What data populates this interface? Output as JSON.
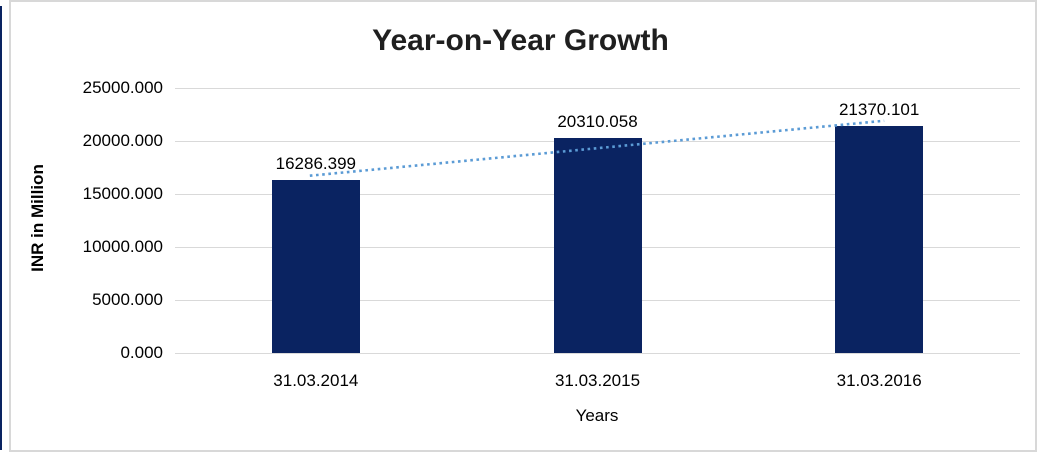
{
  "frame": {
    "border_color": "#d8d8d8",
    "left_edge_color": "#0a2361"
  },
  "chart_data": {
    "type": "bar",
    "title": "Year-on-Year Growth",
    "xlabel": "Years",
    "ylabel": "INR in Million",
    "categories": [
      "31.03.2014",
      "31.03.2015",
      "31.03.2016"
    ],
    "values": [
      16286.399,
      20310.058,
      21370.101
    ],
    "data_labels": [
      "16286.399",
      "20310.058",
      "21370.101"
    ],
    "ylim": [
      0,
      25000
    ],
    "ytick_values": [
      0,
      5000,
      10000,
      15000,
      20000,
      25000
    ],
    "ytick_labels": [
      "0.000",
      "5000.000",
      "10000.000",
      "15000.000",
      "20000.000",
      "25000.000"
    ],
    "grid": true,
    "legend": "none",
    "bar_color": "#0a2361",
    "grid_color": "#d9d9d9",
    "trendline": {
      "type": "linear",
      "style": "dotted",
      "color": "#5b9bd5"
    }
  }
}
